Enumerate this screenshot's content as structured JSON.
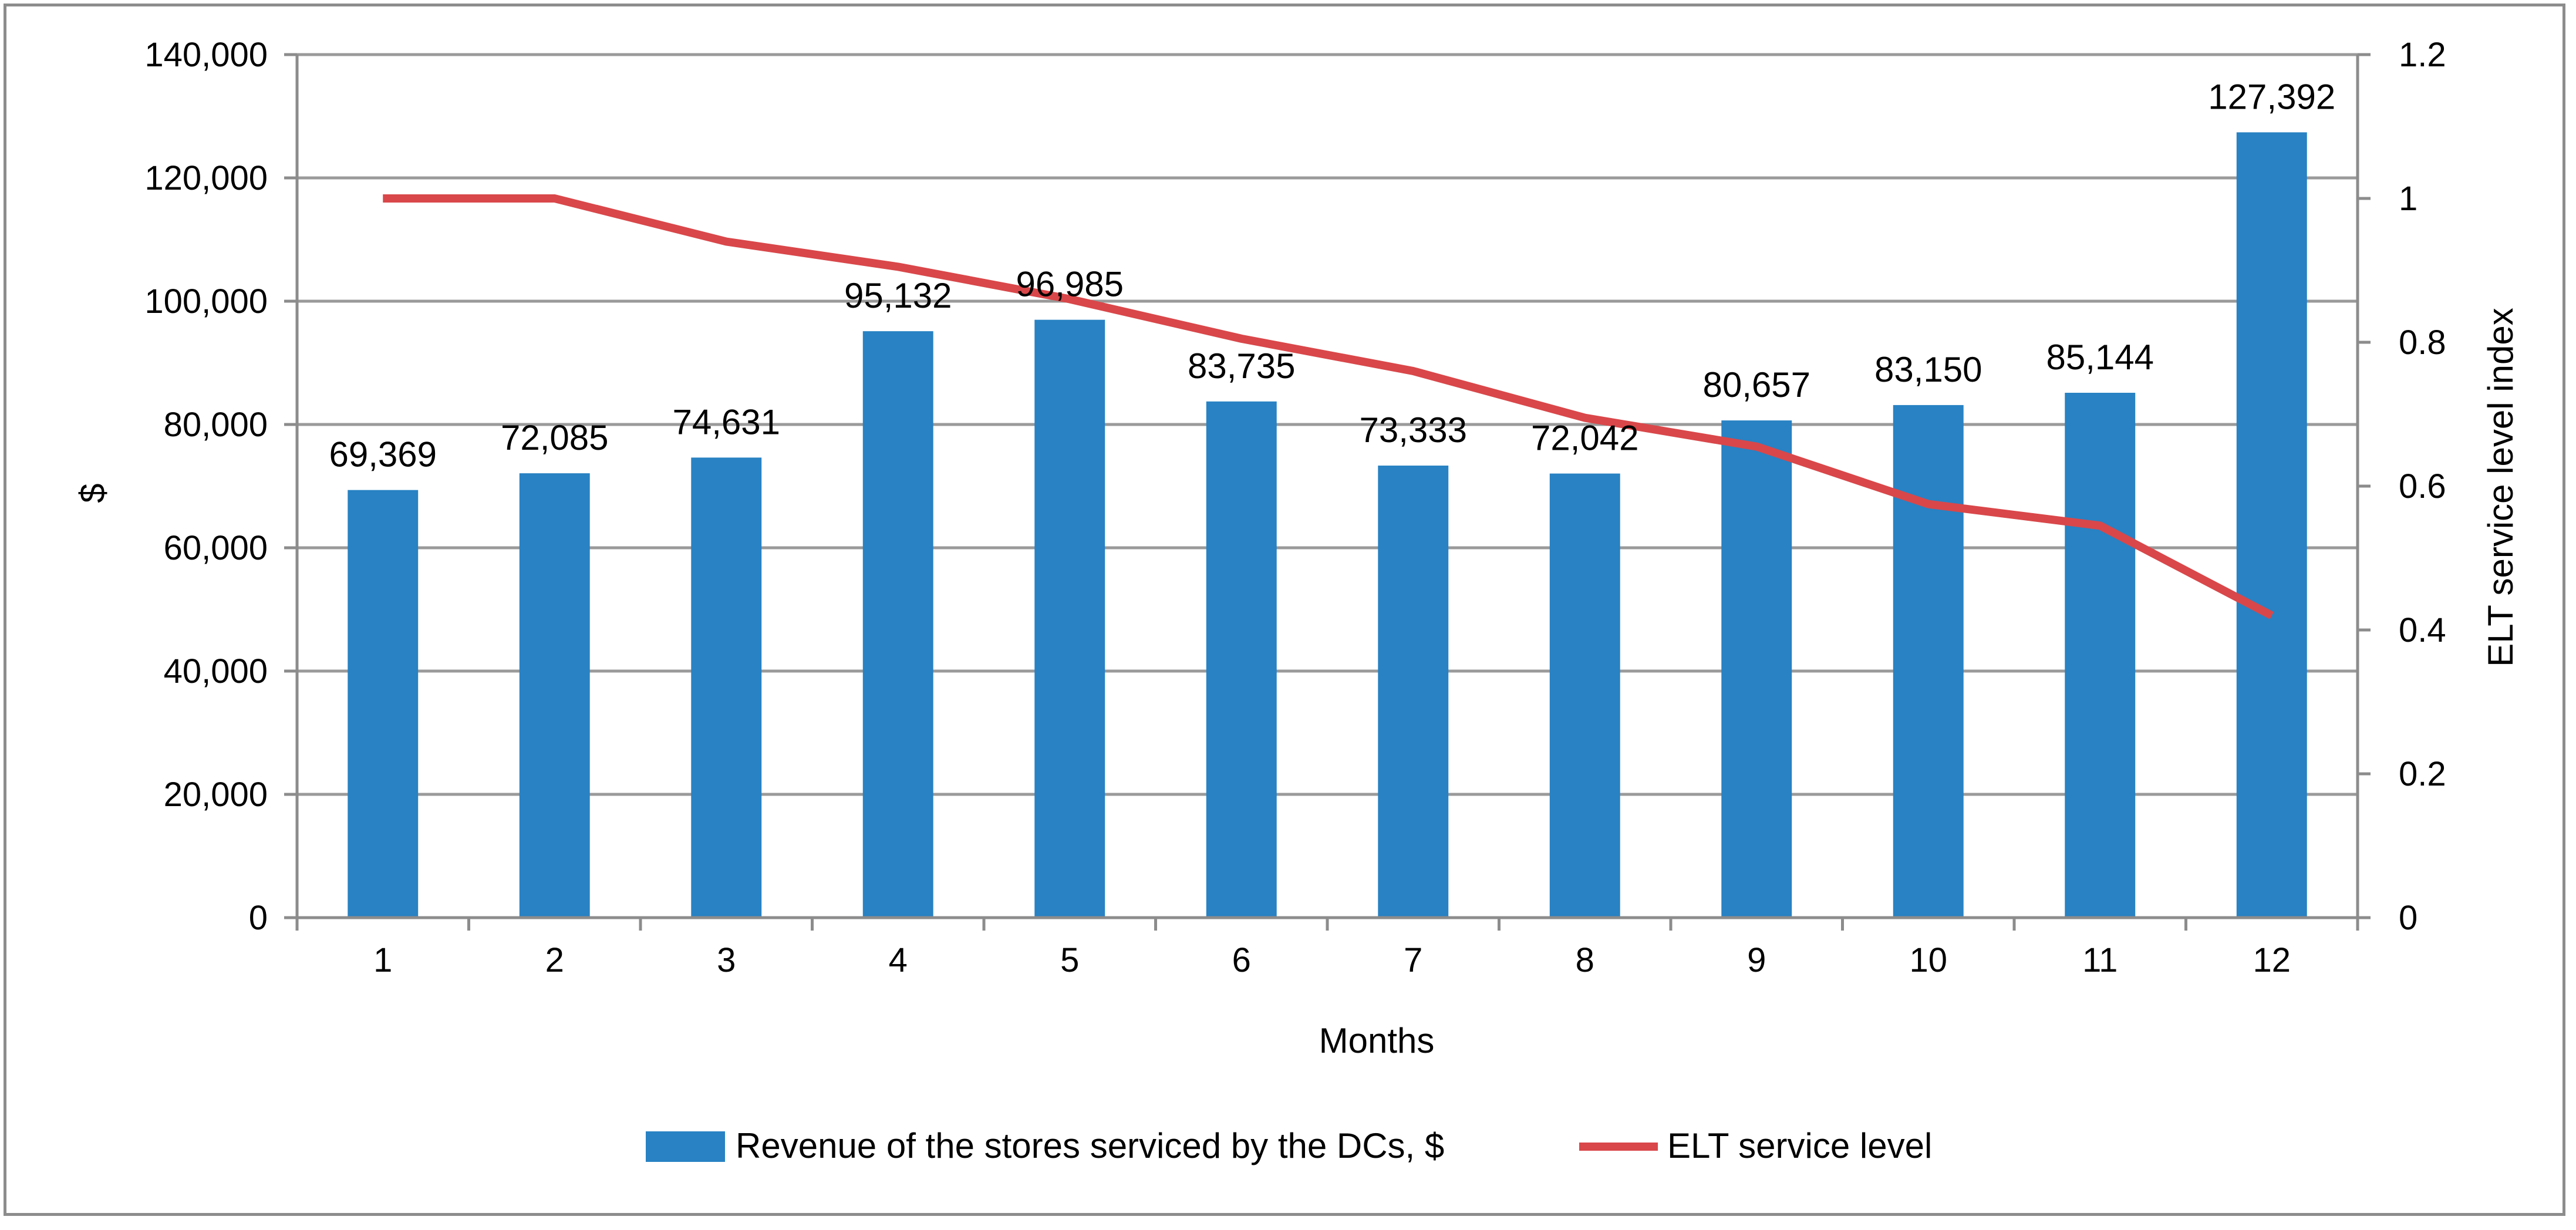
{
  "chart_data": {
    "type": "bar",
    "title": "",
    "categories": [
      "1",
      "2",
      "3",
      "4",
      "5",
      "6",
      "7",
      "8",
      "9",
      "10",
      "11",
      "12"
    ],
    "series": [
      {
        "name": "Revenue of the stores serviced by the DCs, $",
        "type": "bar",
        "axis": "left",
        "color": "#2882c3",
        "values": [
          69369,
          72085,
          74631,
          95132,
          96985,
          83735,
          73333,
          72042,
          80657,
          83150,
          85144,
          127392
        ],
        "labels": [
          "69,369",
          "72,085",
          "74,631",
          "95,132",
          "96,985",
          "83,735",
          "73,333",
          "72,042",
          "80,657",
          "83,150",
          "85,144",
          "127,392"
        ]
      },
      {
        "name": "ELT service level",
        "type": "line",
        "axis": "right",
        "color": "#d9474a",
        "values": [
          1.0,
          1.0,
          0.94,
          0.905,
          0.86,
          0.805,
          0.76,
          0.695,
          0.655,
          0.575,
          0.545,
          0.42
        ]
      }
    ],
    "xlabel": "Months",
    "ylabel": "$",
    "y2label": "ELT service level index",
    "ylim": [
      0,
      140000
    ],
    "y2lim": [
      0,
      1.2
    ],
    "yticks": [
      0,
      20000,
      40000,
      60000,
      80000,
      100000,
      120000,
      140000
    ],
    "ytick_labels": [
      "0",
      "20,000",
      "40,000",
      "60,000",
      "80,000",
      "100,000",
      "120,000",
      "140,000"
    ],
    "y2ticks": [
      0,
      0.2,
      0.4,
      0.6,
      0.8,
      1,
      1.2
    ],
    "y2tick_labels": [
      "0",
      "0.2",
      "0.4",
      "0.6",
      "0.8",
      "1",
      "1.2"
    ],
    "grid": true,
    "legend": "bottom"
  }
}
